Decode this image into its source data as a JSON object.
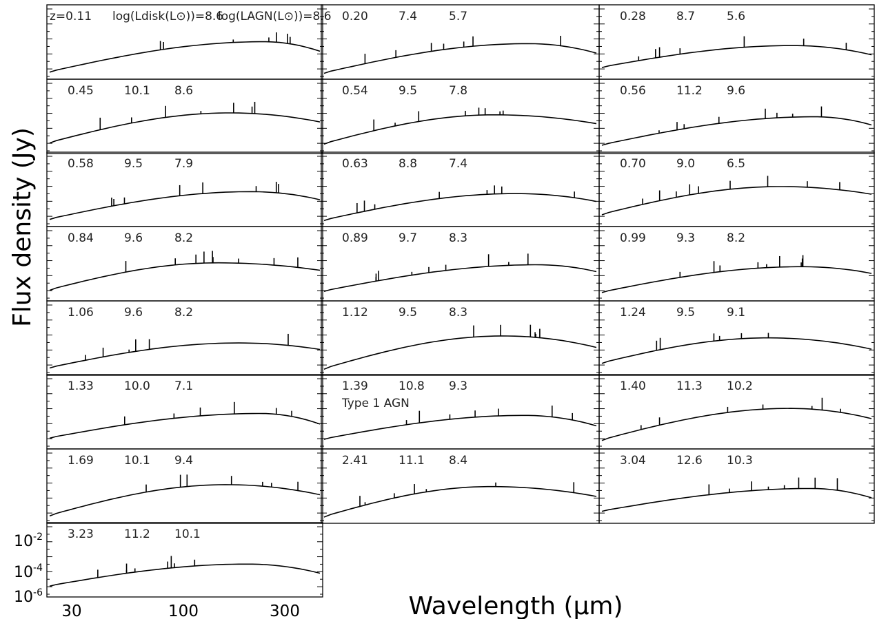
{
  "chart_data": {
    "type": "line",
    "layout": "small-multiples",
    "xlabel": "Wavelength (μm)",
    "ylabel": "Flux density (Jy)",
    "xscale": "log",
    "yscale": "log",
    "xlim": [
      25,
      380
    ],
    "ylim": [
      1e-06,
      0.1
    ],
    "x_ticks": [
      "30",
      "100",
      "300"
    ],
    "y_ticks": [
      "10-6",
      "10-4",
      "10-2"
    ],
    "panel_header": {
      "z": "z=",
      "ldisk": "log(Ldisk(L⊙))=",
      "lagn": "log(LAGN(L⊙))="
    },
    "panels": [
      {
        "z": "0.11",
        "ldisk": "8.6",
        "lagn": "8.6",
        "note": ""
      },
      {
        "z": "0.20",
        "ldisk": "7.4",
        "lagn": "5.7",
        "note": ""
      },
      {
        "z": "0.28",
        "ldisk": "8.7",
        "lagn": "5.6",
        "note": ""
      },
      {
        "z": "0.45",
        "ldisk": "10.1",
        "lagn": "8.6",
        "note": ""
      },
      {
        "z": "0.54",
        "ldisk": "9.5",
        "lagn": "7.8",
        "note": ""
      },
      {
        "z": "0.56",
        "ldisk": "11.2",
        "lagn": "9.6",
        "note": ""
      },
      {
        "z": "0.58",
        "ldisk": "9.5",
        "lagn": "7.9",
        "note": ""
      },
      {
        "z": "0.63",
        "ldisk": "8.8",
        "lagn": "7.4",
        "note": ""
      },
      {
        "z": "0.70",
        "ldisk": "9.0",
        "lagn": "6.5",
        "note": ""
      },
      {
        "z": "0.84",
        "ldisk": "9.6",
        "lagn": "8.2",
        "note": ""
      },
      {
        "z": "0.89",
        "ldisk": "9.7",
        "lagn": "8.3",
        "note": ""
      },
      {
        "z": "0.99",
        "ldisk": "9.3",
        "lagn": "8.2",
        "note": ""
      },
      {
        "z": "1.06",
        "ldisk": "9.6",
        "lagn": "8.2",
        "note": ""
      },
      {
        "z": "1.12",
        "ldisk": "9.5",
        "lagn": "8.3",
        "note": ""
      },
      {
        "z": "1.24",
        "ldisk": "9.5",
        "lagn": "9.1",
        "note": ""
      },
      {
        "z": "1.33",
        "ldisk": "10.0",
        "lagn": "7.1",
        "note": ""
      },
      {
        "z": "1.39",
        "ldisk": "10.8",
        "lagn": "9.3",
        "note": "Type 1 AGN"
      },
      {
        "z": "1.40",
        "ldisk": "11.3",
        "lagn": "10.2",
        "note": ""
      },
      {
        "z": "1.69",
        "ldisk": "10.1",
        "lagn": "9.4",
        "note": ""
      },
      {
        "z": "2.41",
        "ldisk": "11.1",
        "lagn": "8.4",
        "note": ""
      },
      {
        "z": "3.04",
        "ldisk": "12.6",
        "lagn": "10.3",
        "note": ""
      },
      {
        "z": "3.23",
        "ldisk": "11.2",
        "lagn": "10.1",
        "note": ""
      }
    ]
  },
  "style": {
    "line_color": "#000000",
    "frame_color": "#000000",
    "background": "#ffffff"
  }
}
